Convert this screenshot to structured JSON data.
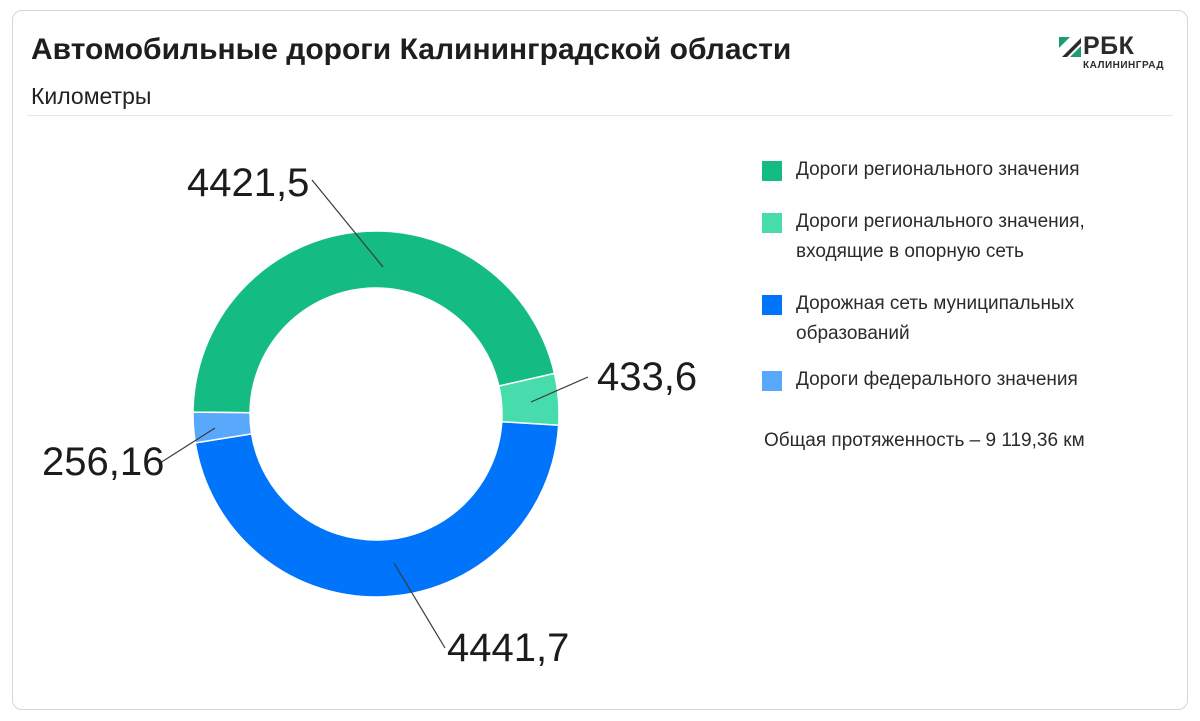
{
  "header": {
    "title": "Автомобильные дороги Калининградской области",
    "subtitle": "Километры"
  },
  "logo": {
    "main": "РБК",
    "sub": "КАЛИНИНГРАД"
  },
  "total_note": "Общая протяженность – 9 119,36 км",
  "chart_data": {
    "type": "pie",
    "title": "Автомобильные дороги Калининградской области",
    "subtitle": "Километры",
    "legend_position": "right",
    "categories": [
      "Дороги регионального значения",
      "Дороги регионального значения, входящие в опорную сеть",
      "Дорожная сеть муниципальных образований",
      "Дороги федерального значения"
    ],
    "legend_lines": [
      [
        "Дороги регионального значения"
      ],
      [
        "Дороги регионального значения,",
        "входящие в опорную сеть"
      ],
      [
        "Дорожная сеть муниципальных",
        "образований"
      ],
      [
        "Дороги федерального значения"
      ]
    ],
    "values": [
      4421.5,
      433.6,
      4441.7,
      256.16
    ],
    "data_labels": [
      "4421,5",
      "433,6",
      "4441,7",
      "256,16"
    ],
    "colors": [
      "#14bb83",
      "#46dcab",
      "#0074fb",
      "#5aa8fc"
    ]
  }
}
